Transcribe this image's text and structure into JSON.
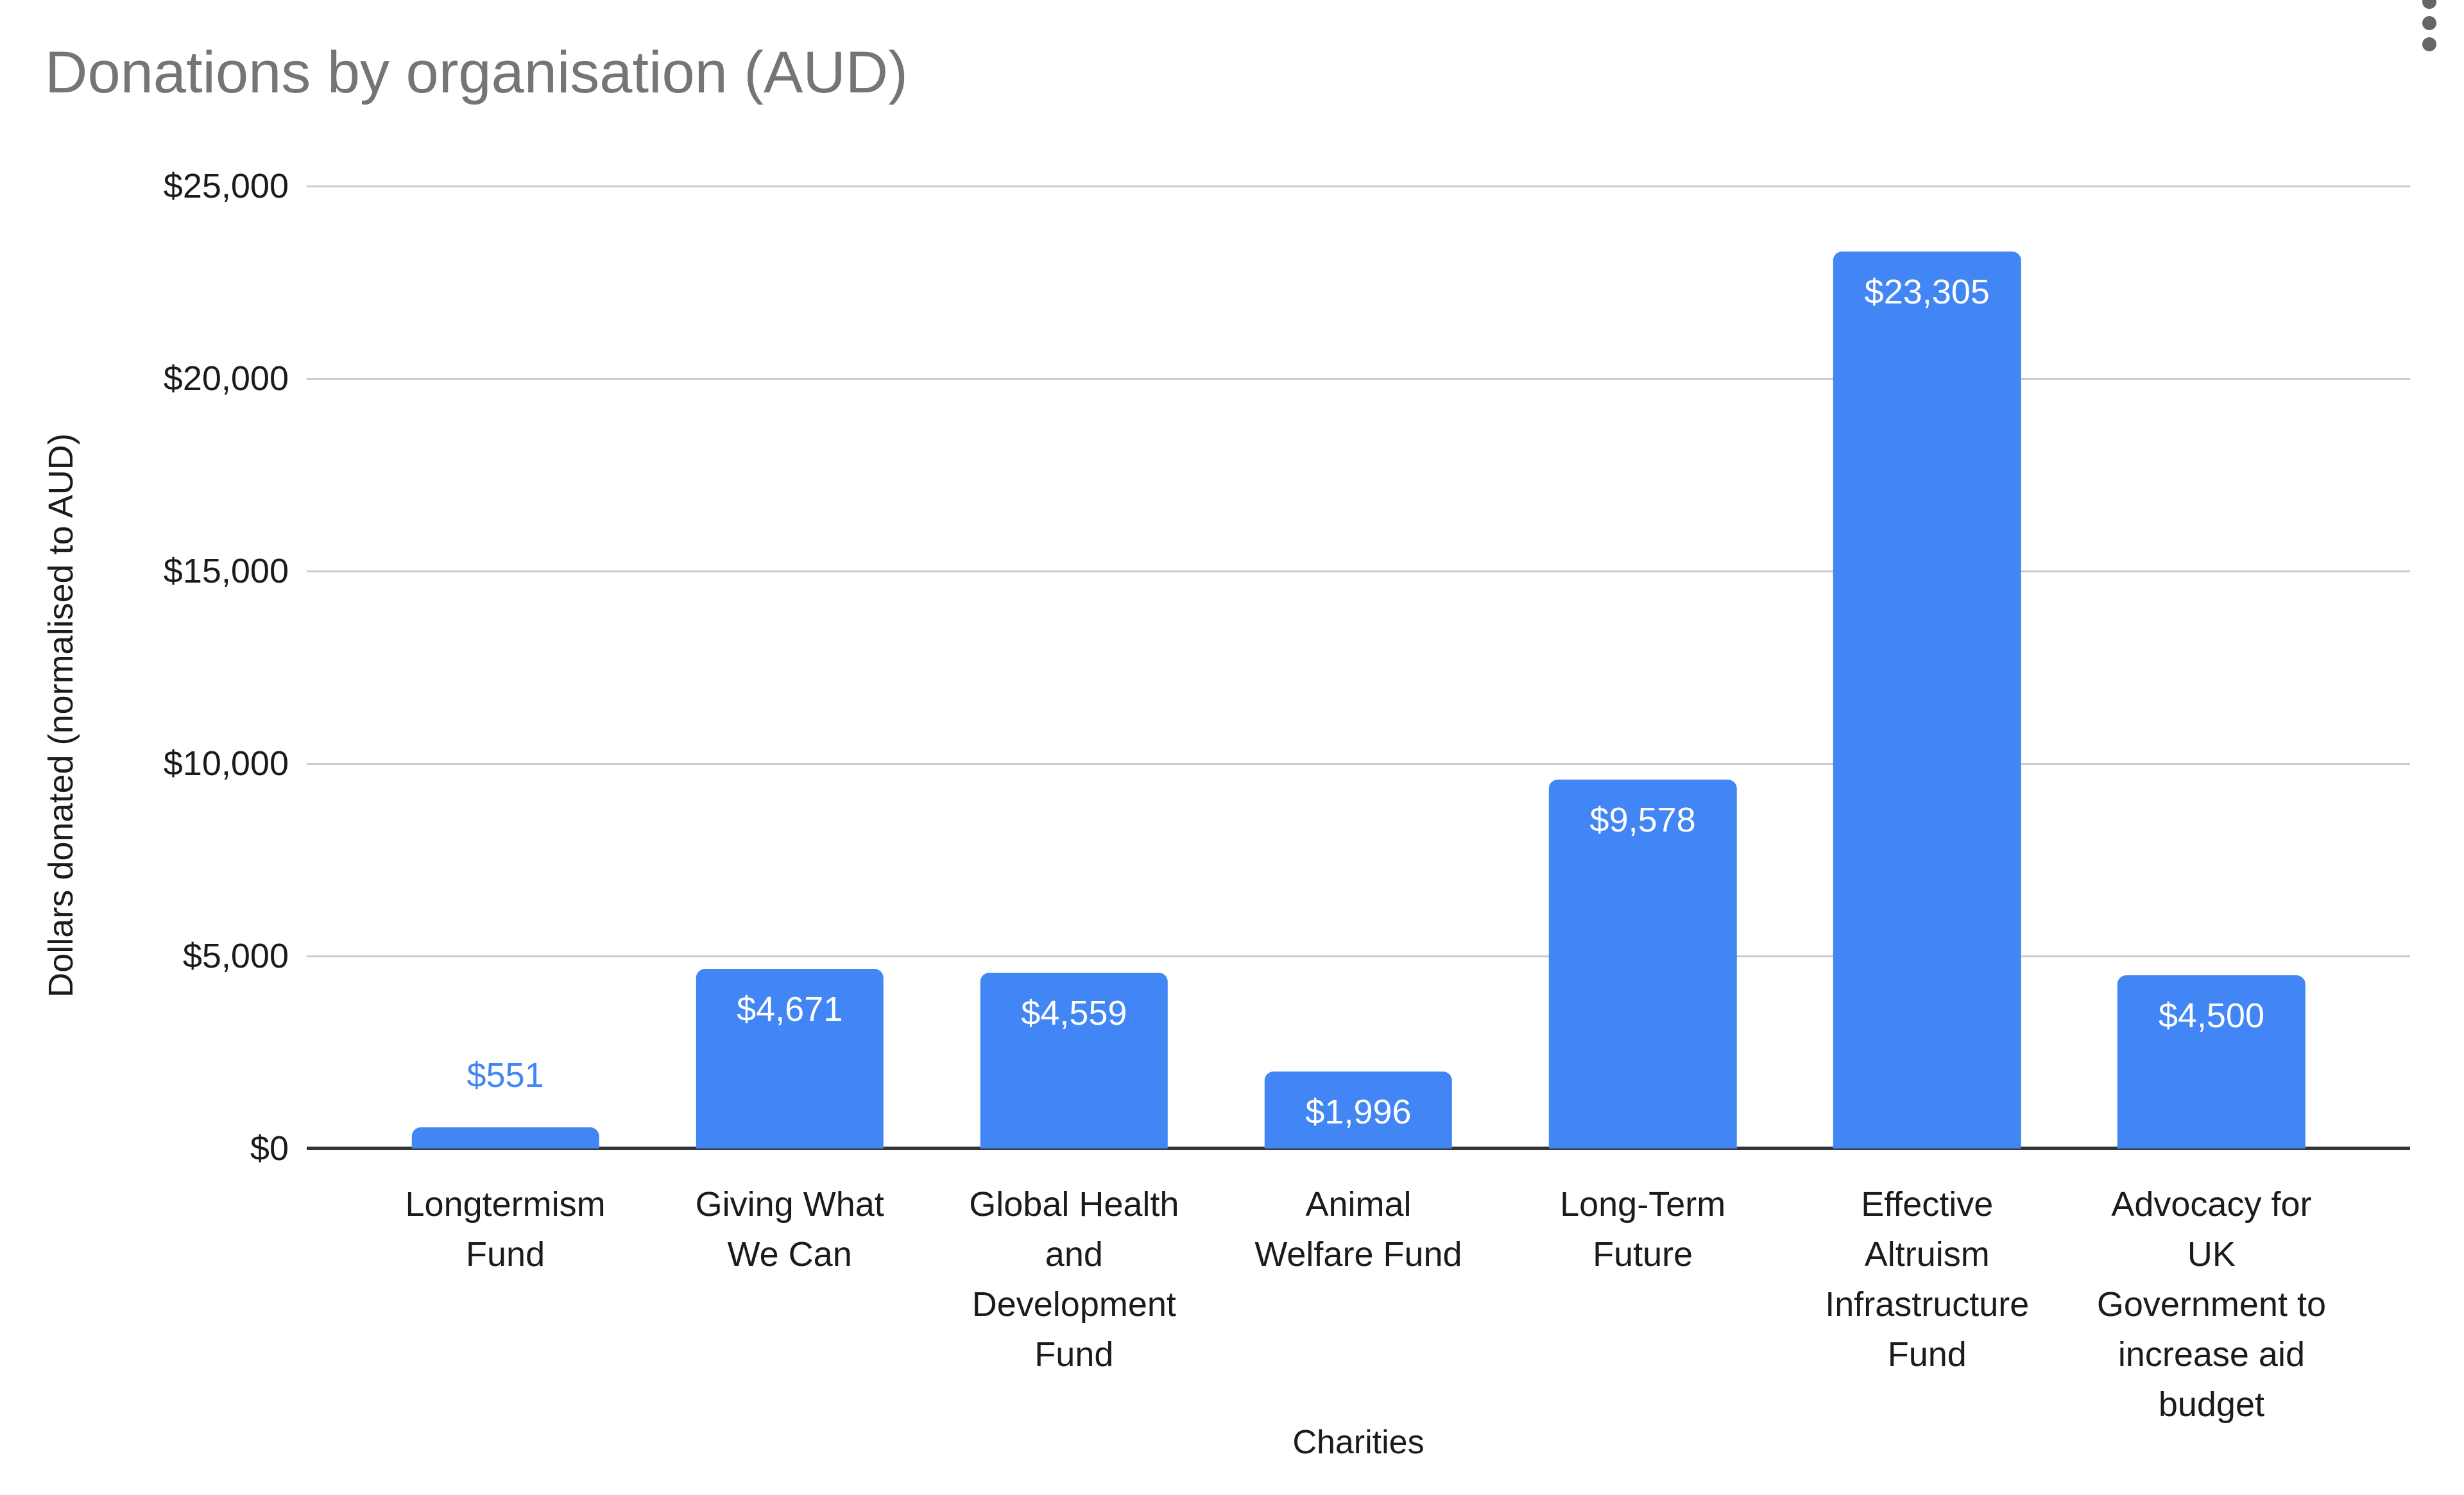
{
  "header": {
    "title": "Donations by organisation (AUD)"
  },
  "menu": {
    "icon": "vertical-ellipsis-icon",
    "tooltip": "More options"
  },
  "chart_data": {
    "type": "bar",
    "title": "Donations by organisation (AUD)",
    "xlabel": "Charities",
    "ylabel": "Dollars donated (normalised to AUD)",
    "ylim": [
      0,
      25000
    ],
    "ytick_step": 5000,
    "ytick_labels": [
      "$25,000",
      "$20,000",
      "$15,000",
      "$10,000",
      "$5,000",
      "$0"
    ],
    "grid": true,
    "legend_position": "none",
    "categories": [
      "Longtermism\nFund",
      "Giving What\nWe Can",
      "Global Health\nand\nDevelopment\nFund",
      "Animal\nWelfare Fund",
      "Long-Term\nFuture",
      "Effective\nAltruism\nInfrastructure\nFund",
      "Advocacy for\nUK\nGovernment to\nincrease aid\nbudget"
    ],
    "values": [
      551,
      4671,
      4559,
      1996,
      9578,
      23305,
      4500
    ],
    "value_labels": [
      "$551",
      "$4,671",
      "$4,559",
      "$1,996",
      "$9,578",
      "$23,305",
      "$4,500"
    ],
    "value_label_positions": [
      "above",
      "inside",
      "inside",
      "inside",
      "inside",
      "inside",
      "inside"
    ],
    "colors": {
      "bar": "#4285F4",
      "value_label_inside": "#ffffff",
      "value_label_outside": "#4285F4",
      "title_text": "#757575",
      "axis_text": "#1b1b1b",
      "gridline": "#cccccc",
      "baseline": "#333333"
    }
  }
}
